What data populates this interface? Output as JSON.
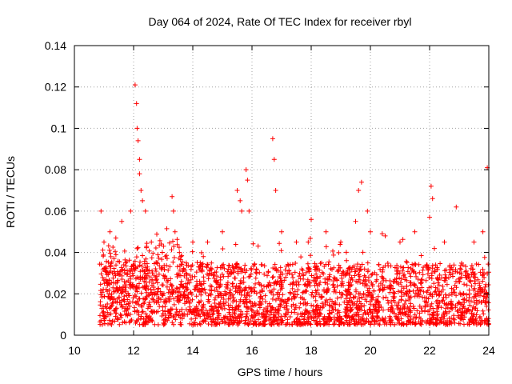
{
  "chart_data": {
    "type": "scatter",
    "title": "Day 064 of 2024, Rate Of TEC Index for receiver rbyl",
    "xlabel": "GPS time / hours",
    "ylabel": "ROTI / TECUs",
    "xlim": [
      10,
      24
    ],
    "ylim": [
      0,
      0.14
    ],
    "x_ticks": [
      "10",
      "12",
      "14",
      "16",
      "18",
      "20",
      "22",
      "24"
    ],
    "y_ticks": [
      "0",
      "0.02",
      "0.04",
      "0.06",
      "0.08",
      "0.1",
      "0.12",
      "0.14"
    ],
    "grid": true,
    "marker": "+",
    "marker_color": "#ff0000",
    "series": [
      {
        "name": "ROTI",
        "x_range": [
          10.85,
          24.0
        ],
        "baseline_band": [
          0.005,
          0.035
        ],
        "x": [
          10.9,
          11.0,
          11.2,
          11.4,
          11.6,
          11.9,
          12.05,
          12.1,
          12.12,
          12.15,
          12.2,
          12.2,
          12.25,
          12.3,
          12.4,
          12.6,
          13.3,
          13.35,
          13.4,
          14.0,
          14.5,
          15.0,
          15.5,
          15.6,
          15.65,
          15.8,
          15.85,
          15.9,
          16.7,
          16.75,
          16.8,
          17.0,
          17.5,
          17.9,
          18.0,
          18.5,
          19.0,
          19.5,
          19.6,
          19.7,
          19.9,
          20.0,
          20.5,
          21.0,
          21.5,
          22.0,
          22.05,
          22.1,
          22.5,
          22.9,
          23.5,
          23.8,
          23.95
        ],
        "y": [
          0.06,
          0.045,
          0.05,
          0.047,
          0.055,
          0.06,
          0.121,
          0.112,
          0.1,
          0.094,
          0.085,
          0.078,
          0.07,
          0.065,
          0.06,
          0.045,
          0.067,
          0.06,
          0.05,
          0.045,
          0.045,
          0.05,
          0.07,
          0.065,
          0.06,
          0.08,
          0.075,
          0.06,
          0.095,
          0.085,
          0.07,
          0.05,
          0.045,
          0.045,
          0.056,
          0.05,
          0.045,
          0.055,
          0.07,
          0.074,
          0.06,
          0.05,
          0.048,
          0.045,
          0.05,
          0.057,
          0.072,
          0.066,
          0.045,
          0.062,
          0.045,
          0.05,
          0.081
        ]
      }
    ]
  }
}
